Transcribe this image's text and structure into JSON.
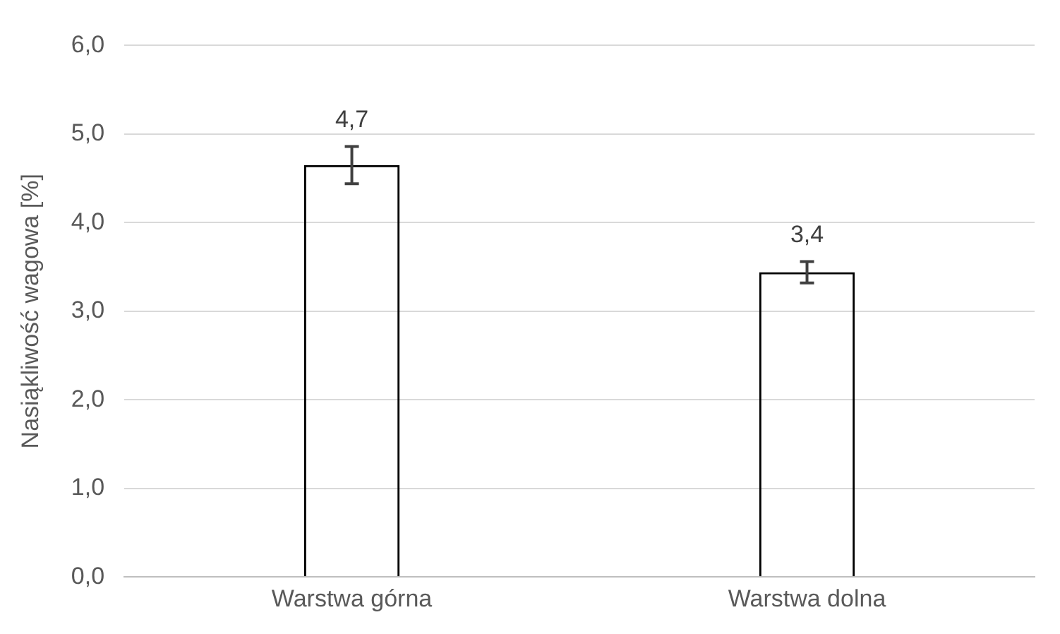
{
  "chart_data": {
    "type": "bar",
    "ylabel": "Nasiąkliwość wagowa [%]",
    "categories": [
      "Warstwa górna",
      "Warstwa dolna"
    ],
    "values": [
      4.65,
      3.44
    ],
    "color": "#000000",
    "errors": [
      0.21,
      0.12
    ],
    "value_labels": [
      "4,7",
      "3,4"
    ],
    "ylim": [
      0,
      6
    ],
    "yticks": [
      {
        "value": 0,
        "label": "0,0"
      },
      {
        "value": 1,
        "label": "1,0"
      },
      {
        "value": 2,
        "label": "2,0"
      },
      {
        "value": 3,
        "label": "3,0"
      },
      {
        "value": 4,
        "label": "4,0"
      },
      {
        "value": 5,
        "label": "5,0"
      },
      {
        "value": 6,
        "label": "6,0"
      }
    ],
    "grid": "y"
  }
}
